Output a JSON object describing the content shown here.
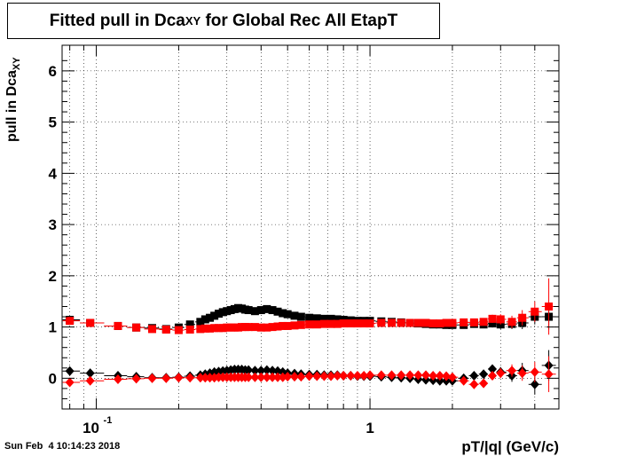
{
  "title": {
    "main": "Fitted pull in Dca",
    "sub": "XY",
    "rest": " for Global Rec All EtapT"
  },
  "timestamp": "Sun Feb  4 10:14:23 2018",
  "chart_data": {
    "type": "scatter",
    "title": "Fitted pull in DcaXY for Global Rec All EtapT",
    "xlabel": "pT/|q| (GeV/c)",
    "ylabel_main": "pull in Dca",
    "ylabel_sub": "XY",
    "x_scale": "log",
    "xlim": [
      0.075,
      4.9
    ],
    "ylim": [
      -0.6,
      6.5
    ],
    "grid": true,
    "y_ticks": [
      "0",
      "1",
      "2",
      "3",
      "4",
      "5",
      "6"
    ],
    "x_tick_labels": [
      {
        "x": 0.1,
        "base": "10",
        "exp": "-1"
      },
      {
        "x": 1,
        "base": "1",
        "exp": ""
      }
    ],
    "series": [
      {
        "color": "#000000",
        "marker": "square",
        "x": [
          0.08,
          0.095,
          0.12,
          0.14,
          0.16,
          0.18,
          0.2,
          0.22,
          0.24,
          0.25,
          0.26,
          0.27,
          0.28,
          0.29,
          0.3,
          0.31,
          0.32,
          0.33,
          0.34,
          0.35,
          0.36,
          0.38,
          0.4,
          0.42,
          0.44,
          0.46,
          0.48,
          0.5,
          0.53,
          0.56,
          0.6,
          0.64,
          0.68,
          0.72,
          0.76,
          0.8,
          0.85,
          0.9,
          0.95,
          1.0,
          1.1,
          1.2,
          1.3,
          1.4,
          1.5,
          1.6,
          1.7,
          1.8,
          1.9,
          2.0,
          2.2,
          2.4,
          2.6,
          2.8,
          3.0,
          3.3,
          3.6,
          4.0,
          4.5
        ],
        "y": [
          1.14,
          1.08,
          1.02,
          0.99,
          0.98,
          0.96,
          0.99,
          1.05,
          1.1,
          1.15,
          1.18,
          1.22,
          1.26,
          1.29,
          1.31,
          1.33,
          1.35,
          1.37,
          1.36,
          1.34,
          1.33,
          1.31,
          1.33,
          1.35,
          1.33,
          1.3,
          1.27,
          1.25,
          1.22,
          1.2,
          1.18,
          1.17,
          1.16,
          1.16,
          1.15,
          1.14,
          1.13,
          1.12,
          1.12,
          1.12,
          1.11,
          1.1,
          1.09,
          1.08,
          1.07,
          1.06,
          1.05,
          1.05,
          1.04,
          1.04,
          1.04,
          1.06,
          1.05,
          1.07,
          1.05,
          1.06,
          1.08,
          1.2,
          1.2
        ],
        "err": [
          0.06,
          0.05,
          0.04,
          0.03,
          0.03,
          0.03,
          0.03,
          0.03,
          0.03,
          0.03,
          0.03,
          0.03,
          0.03,
          0.03,
          0.03,
          0.03,
          0.03,
          0.03,
          0.03,
          0.03,
          0.03,
          0.03,
          0.03,
          0.03,
          0.03,
          0.03,
          0.03,
          0.03,
          0.03,
          0.03,
          0.03,
          0.03,
          0.03,
          0.03,
          0.03,
          0.03,
          0.03,
          0.03,
          0.03,
          0.03,
          0.03,
          0.03,
          0.03,
          0.03,
          0.03,
          0.03,
          0.03,
          0.04,
          0.04,
          0.04,
          0.05,
          0.06,
          0.07,
          0.08,
          0.09,
          0.1,
          0.12,
          0.15,
          0.25
        ]
      },
      {
        "color": "#ff0000",
        "marker": "square",
        "x": [
          0.08,
          0.095,
          0.12,
          0.14,
          0.16,
          0.18,
          0.2,
          0.22,
          0.24,
          0.25,
          0.26,
          0.27,
          0.28,
          0.29,
          0.3,
          0.31,
          0.32,
          0.33,
          0.34,
          0.35,
          0.36,
          0.38,
          0.4,
          0.42,
          0.44,
          0.46,
          0.48,
          0.5,
          0.53,
          0.56,
          0.6,
          0.64,
          0.68,
          0.72,
          0.76,
          0.8,
          0.85,
          0.9,
          0.95,
          1.0,
          1.1,
          1.2,
          1.3,
          1.4,
          1.5,
          1.6,
          1.7,
          1.8,
          1.9,
          2.0,
          2.2,
          2.4,
          2.6,
          2.8,
          3.0,
          3.3,
          3.6,
          4.0,
          4.5
        ],
        "y": [
          1.12,
          1.08,
          1.02,
          0.99,
          0.96,
          0.95,
          0.94,
          0.95,
          0.96,
          0.97,
          0.97,
          0.98,
          0.98,
          0.98,
          0.99,
          0.99,
          0.99,
          0.99,
          1.0,
          1.0,
          1.0,
          1.0,
          0.99,
          0.99,
          1.0,
          1.01,
          1.02,
          1.02,
          1.03,
          1.04,
          1.05,
          1.05,
          1.06,
          1.06,
          1.06,
          1.07,
          1.07,
          1.07,
          1.07,
          1.07,
          1.08,
          1.08,
          1.08,
          1.08,
          1.08,
          1.08,
          1.07,
          1.07,
          1.08,
          1.08,
          1.09,
          1.09,
          1.1,
          1.16,
          1.15,
          1.1,
          1.18,
          1.3,
          1.4
        ],
        "err": [
          0.06,
          0.05,
          0.04,
          0.03,
          0.03,
          0.03,
          0.03,
          0.03,
          0.03,
          0.03,
          0.03,
          0.03,
          0.03,
          0.03,
          0.03,
          0.03,
          0.03,
          0.03,
          0.03,
          0.03,
          0.03,
          0.03,
          0.03,
          0.03,
          0.03,
          0.03,
          0.03,
          0.03,
          0.03,
          0.03,
          0.03,
          0.03,
          0.03,
          0.03,
          0.03,
          0.03,
          0.03,
          0.03,
          0.03,
          0.03,
          0.03,
          0.03,
          0.03,
          0.03,
          0.03,
          0.03,
          0.03,
          0.04,
          0.04,
          0.04,
          0.05,
          0.06,
          0.07,
          0.08,
          0.1,
          0.12,
          0.15,
          0.2,
          0.55
        ]
      },
      {
        "color": "#000000",
        "marker": "diamond",
        "x": [
          0.08,
          0.095,
          0.12,
          0.14,
          0.16,
          0.18,
          0.2,
          0.22,
          0.24,
          0.25,
          0.26,
          0.27,
          0.28,
          0.29,
          0.3,
          0.31,
          0.32,
          0.33,
          0.34,
          0.35,
          0.36,
          0.38,
          0.4,
          0.42,
          0.44,
          0.46,
          0.48,
          0.5,
          0.53,
          0.56,
          0.6,
          0.64,
          0.68,
          0.72,
          0.76,
          0.8,
          0.85,
          0.9,
          0.95,
          1.0,
          1.1,
          1.2,
          1.3,
          1.4,
          1.5,
          1.6,
          1.7,
          1.8,
          1.9,
          2.0,
          2.2,
          2.4,
          2.6,
          2.8,
          3.0,
          3.3,
          3.6,
          4.0,
          4.5
        ],
        "y": [
          0.14,
          0.1,
          0.05,
          0.03,
          0.01,
          0.01,
          0.02,
          0.04,
          0.06,
          0.08,
          0.1,
          0.12,
          0.13,
          0.14,
          0.15,
          0.16,
          0.17,
          0.17,
          0.17,
          0.16,
          0.16,
          0.15,
          0.15,
          0.16,
          0.15,
          0.14,
          0.12,
          0.1,
          0.09,
          0.08,
          0.07,
          0.07,
          0.06,
          0.06,
          0.06,
          0.05,
          0.05,
          0.04,
          0.04,
          0.04,
          0.03,
          0.02,
          0.01,
          0.0,
          -0.02,
          -0.03,
          -0.04,
          -0.05,
          -0.05,
          -0.05,
          0.0,
          0.05,
          0.08,
          0.18,
          0.12,
          0.05,
          0.15,
          -0.12,
          0.25
        ],
        "err": [
          0.05,
          0.04,
          0.03,
          0.03,
          0.03,
          0.03,
          0.03,
          0.03,
          0.03,
          0.03,
          0.03,
          0.03,
          0.03,
          0.03,
          0.03,
          0.03,
          0.03,
          0.03,
          0.03,
          0.03,
          0.03,
          0.03,
          0.03,
          0.03,
          0.03,
          0.03,
          0.03,
          0.03,
          0.03,
          0.03,
          0.03,
          0.03,
          0.03,
          0.03,
          0.03,
          0.03,
          0.03,
          0.03,
          0.03,
          0.03,
          0.03,
          0.03,
          0.03,
          0.03,
          0.03,
          0.03,
          0.03,
          0.04,
          0.04,
          0.04,
          0.05,
          0.06,
          0.07,
          0.08,
          0.1,
          0.12,
          0.15,
          0.2,
          0.3
        ]
      },
      {
        "color": "#ff0000",
        "marker": "diamond",
        "x": [
          0.08,
          0.095,
          0.12,
          0.14,
          0.16,
          0.18,
          0.2,
          0.22,
          0.24,
          0.25,
          0.26,
          0.27,
          0.28,
          0.29,
          0.3,
          0.31,
          0.32,
          0.33,
          0.34,
          0.35,
          0.36,
          0.38,
          0.4,
          0.42,
          0.44,
          0.46,
          0.48,
          0.5,
          0.53,
          0.56,
          0.6,
          0.64,
          0.68,
          0.72,
          0.76,
          0.8,
          0.85,
          0.9,
          0.95,
          1.0,
          1.1,
          1.2,
          1.3,
          1.4,
          1.5,
          1.6,
          1.7,
          1.8,
          1.9,
          2.0,
          2.2,
          2.4,
          2.6,
          2.8,
          3.0,
          3.3,
          3.6,
          4.0,
          4.5
        ],
        "y": [
          -0.08,
          -0.05,
          -0.02,
          -0.01,
          0.0,
          0.0,
          0.01,
          0.01,
          0.01,
          0.01,
          0.01,
          0.01,
          0.02,
          0.02,
          0.02,
          0.02,
          0.02,
          0.02,
          0.02,
          0.02,
          0.02,
          0.02,
          0.02,
          0.02,
          0.02,
          0.02,
          0.02,
          0.03,
          0.03,
          0.03,
          0.04,
          0.04,
          0.04,
          0.04,
          0.05,
          0.05,
          0.05,
          0.05,
          0.05,
          0.06,
          0.06,
          0.06,
          0.06,
          0.06,
          0.06,
          0.06,
          0.05,
          0.05,
          0.04,
          0.02,
          -0.05,
          -0.12,
          -0.1,
          0.05,
          0.1,
          0.15,
          0.1,
          0.12,
          0.08
        ],
        "err": [
          0.05,
          0.04,
          0.03,
          0.03,
          0.03,
          0.03,
          0.03,
          0.03,
          0.03,
          0.03,
          0.03,
          0.03,
          0.03,
          0.03,
          0.03,
          0.03,
          0.03,
          0.03,
          0.03,
          0.03,
          0.03,
          0.03,
          0.03,
          0.03,
          0.03,
          0.03,
          0.03,
          0.03,
          0.03,
          0.03,
          0.03,
          0.03,
          0.03,
          0.03,
          0.03,
          0.03,
          0.03,
          0.03,
          0.03,
          0.03,
          0.03,
          0.03,
          0.03,
          0.03,
          0.03,
          0.03,
          0.03,
          0.04,
          0.04,
          0.04,
          0.05,
          0.06,
          0.07,
          0.08,
          0.1,
          0.12,
          0.15,
          0.2,
          0.35
        ]
      }
    ]
  }
}
